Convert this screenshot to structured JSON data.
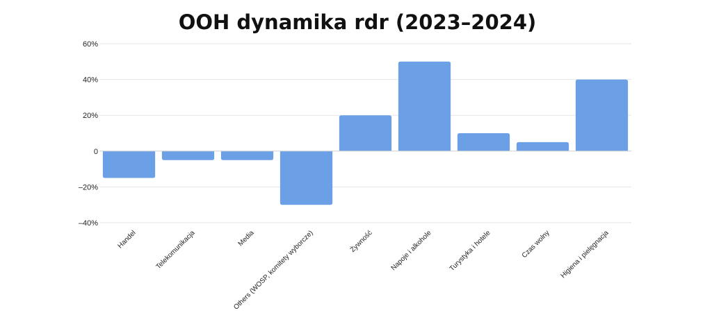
{
  "chart_data": {
    "type": "bar",
    "title": "OOH dynamika rdr (2023–2024)",
    "xlabel": "",
    "ylabel": "",
    "categories": [
      "Handel",
      "Telekomunikacja",
      "Media",
      "Others (WOSP, komitety wyborcze)",
      "Żywność",
      "Napoje i alkohole",
      "Turystyka i hotele",
      "Czas wolny",
      "Higiena i pielęgnacja"
    ],
    "values": [
      -15,
      -5,
      -5,
      -30,
      20,
      50,
      10,
      5,
      40
    ],
    "ylim": [
      -40,
      60
    ],
    "yticks": [
      60,
      40,
      20,
      0,
      -20,
      -40
    ],
    "ytick_labels": [
      "60%",
      "40%",
      "20%",
      "0",
      "–20%",
      "–40%"
    ],
    "grid": true,
    "legend": "none",
    "bar_color": "#6b9fe6"
  }
}
